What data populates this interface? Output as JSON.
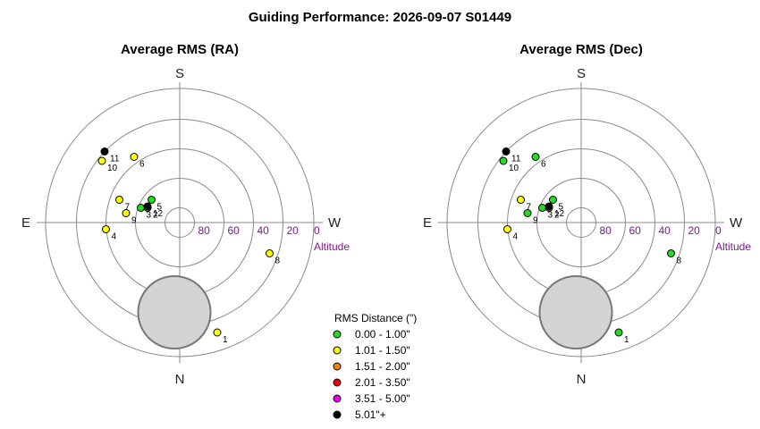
{
  "title": "Guiding Performance: 2026-09-07  S01449",
  "colors": {
    "ring": "#8a8a8a",
    "axis": "#8a8a8a",
    "moon_fill": "#d4d4d4",
    "moon_stroke": "#777777",
    "altitude_text": "#7a1a8a"
  },
  "chart_data": [
    {
      "type": "scatter",
      "title": "Average RMS (RA)",
      "directions": {
        "top": "S",
        "bottom": "N",
        "left": "E",
        "right": "W"
      },
      "altitude_ticks": [
        "80",
        "60",
        "40",
        "20",
        "0"
      ],
      "altitude_label": "Altitude",
      "moon": {
        "x": -0.04,
        "y": -0.67,
        "r": 0.27
      },
      "points": [
        {
          "label": "1",
          "x": 0.28,
          "y": -0.82,
          "category": "yellow"
        },
        {
          "label": "2",
          "x": -0.24,
          "y": 0.11,
          "category": "green"
        },
        {
          "label": "3",
          "x": -0.29,
          "y": 0.11,
          "category": "green"
        },
        {
          "label": "4",
          "x": -0.55,
          "y": -0.05,
          "category": "yellow"
        },
        {
          "label": "5",
          "x": -0.21,
          "y": 0.17,
          "category": "green"
        },
        {
          "label": "6",
          "x": -0.34,
          "y": 0.49,
          "category": "yellow"
        },
        {
          "label": "7",
          "x": -0.45,
          "y": 0.17,
          "category": "yellow"
        },
        {
          "label": "8",
          "x": 0.67,
          "y": -0.23,
          "category": "yellow"
        },
        {
          "label": "9",
          "x": -0.4,
          "y": 0.07,
          "category": "yellow"
        },
        {
          "label": "10",
          "x": -0.58,
          "y": 0.46,
          "category": "yellow"
        },
        {
          "label": "11",
          "x": -0.56,
          "y": 0.53,
          "category": "black"
        },
        {
          "label": "12",
          "x": -0.24,
          "y": 0.12,
          "category": "black"
        }
      ]
    },
    {
      "type": "scatter",
      "title": "Average RMS (Dec)",
      "directions": {
        "top": "S",
        "bottom": "N",
        "left": "E",
        "right": "W"
      },
      "altitude_ticks": [
        "80",
        "60",
        "40",
        "20",
        "0"
      ],
      "altitude_label": "Altitude",
      "moon": {
        "x": -0.04,
        "y": -0.67,
        "r": 0.27
      },
      "points": [
        {
          "label": "1",
          "x": 0.28,
          "y": -0.82,
          "category": "green"
        },
        {
          "label": "2",
          "x": -0.24,
          "y": 0.11,
          "category": "green"
        },
        {
          "label": "3",
          "x": -0.29,
          "y": 0.11,
          "category": "green"
        },
        {
          "label": "4",
          "x": -0.55,
          "y": -0.05,
          "category": "yellow"
        },
        {
          "label": "5",
          "x": -0.21,
          "y": 0.17,
          "category": "green"
        },
        {
          "label": "6",
          "x": -0.34,
          "y": 0.49,
          "category": "green"
        },
        {
          "label": "7",
          "x": -0.45,
          "y": 0.17,
          "category": "yellow"
        },
        {
          "label": "8",
          "x": 0.67,
          "y": -0.23,
          "category": "green"
        },
        {
          "label": "9",
          "x": -0.4,
          "y": 0.07,
          "category": "green"
        },
        {
          "label": "10",
          "x": -0.58,
          "y": 0.46,
          "category": "green"
        },
        {
          "label": "11",
          "x": -0.56,
          "y": 0.53,
          "category": "black"
        },
        {
          "label": "12",
          "x": -0.24,
          "y": 0.12,
          "category": "black"
        }
      ]
    }
  ],
  "legend": {
    "title": "RMS Distance (\")",
    "placement": "bottom-center",
    "items": [
      {
        "key": "green",
        "label": "0.00 - 1.00\"",
        "color": "#22dd22"
      },
      {
        "key": "yellow",
        "label": "1.01 - 1.50\"",
        "color": "#ffff00"
      },
      {
        "key": "orange",
        "label": "1.51 - 2.00\"",
        "color": "#ee8800"
      },
      {
        "key": "red",
        "label": "2.01 - 3.50\"",
        "color": "#ee0000"
      },
      {
        "key": "magenta",
        "label": "3.51 - 5.00\"",
        "color": "#ee00ee"
      },
      {
        "key": "black",
        "label": "5.01\"+",
        "color": "#000000"
      }
    ]
  }
}
